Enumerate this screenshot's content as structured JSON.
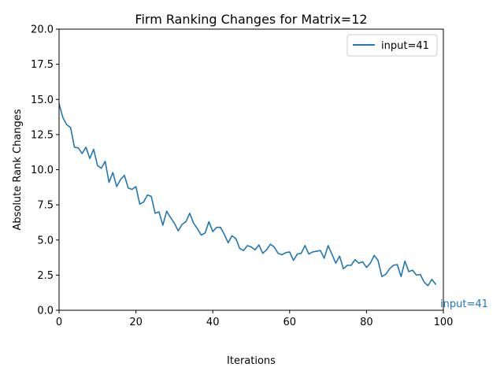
{
  "chart_data": {
    "type": "line",
    "title": "Firm Ranking Changes for Matrix=12",
    "xlabel": "Iterations",
    "ylabel": "Absolute Rank Changes",
    "xlim": [
      0,
      100
    ],
    "ylim": [
      0,
      20
    ],
    "x_ticks": [
      "0",
      "20",
      "40",
      "60",
      "80",
      "100"
    ],
    "y_ticks": [
      "0.0",
      "2.5",
      "5.0",
      "7.5",
      "10.0",
      "12.5",
      "15.0",
      "17.5",
      "20.0"
    ],
    "grid": false,
    "legend_position": "top-right",
    "series": [
      {
        "name": "input=41",
        "color": "#1f77b4",
        "end_label": "input=41",
        "x": [
          0,
          1,
          2,
          3,
          4,
          5,
          6,
          7,
          8,
          9,
          10,
          11,
          12,
          13,
          14,
          15,
          16,
          17,
          18,
          19,
          20,
          21,
          22,
          23,
          24,
          25,
          26,
          27,
          28,
          29,
          30,
          31,
          32,
          33,
          34,
          35,
          36,
          37,
          38,
          39,
          40,
          41,
          42,
          43,
          44,
          45,
          46,
          47,
          48,
          49,
          50,
          51,
          52,
          53,
          54,
          55,
          56,
          57,
          58,
          59,
          60,
          61,
          62,
          63,
          64,
          65,
          66,
          67,
          68,
          69,
          70,
          71,
          72,
          73,
          74,
          75,
          76,
          77,
          78,
          79,
          80,
          81,
          82,
          83,
          84,
          85,
          86,
          87,
          88,
          89,
          90,
          91,
          92,
          93,
          94,
          95,
          96,
          97,
          98
        ],
        "y": [
          14.7,
          13.7,
          13.2,
          13.0,
          11.6,
          11.55,
          11.15,
          11.6,
          10.8,
          11.45,
          10.3,
          10.1,
          10.6,
          9.1,
          9.8,
          8.8,
          9.3,
          9.6,
          8.7,
          8.6,
          8.8,
          7.55,
          7.7,
          8.2,
          8.1,
          6.9,
          7.0,
          6.05,
          7.05,
          6.6,
          6.2,
          5.65,
          6.1,
          6.3,
          6.9,
          6.2,
          5.8,
          5.35,
          5.5,
          6.3,
          5.6,
          5.9,
          5.9,
          5.4,
          4.8,
          5.3,
          5.1,
          4.4,
          4.25,
          4.6,
          4.5,
          4.3,
          4.65,
          4.05,
          4.3,
          4.7,
          4.5,
          4.05,
          3.95,
          4.1,
          4.15,
          3.55,
          4.0,
          4.05,
          4.6,
          4.0,
          4.15,
          4.2,
          4.25,
          3.7,
          4.6,
          4.0,
          3.35,
          3.85,
          2.95,
          3.2,
          3.2,
          3.6,
          3.35,
          3.45,
          3.05,
          3.35,
          3.9,
          3.55,
          2.4,
          2.55,
          2.95,
          3.2,
          3.25,
          2.4,
          3.5,
          2.75,
          2.85,
          2.5,
          2.55,
          2.0,
          1.75,
          2.2,
          1.85
        ]
      }
    ]
  }
}
